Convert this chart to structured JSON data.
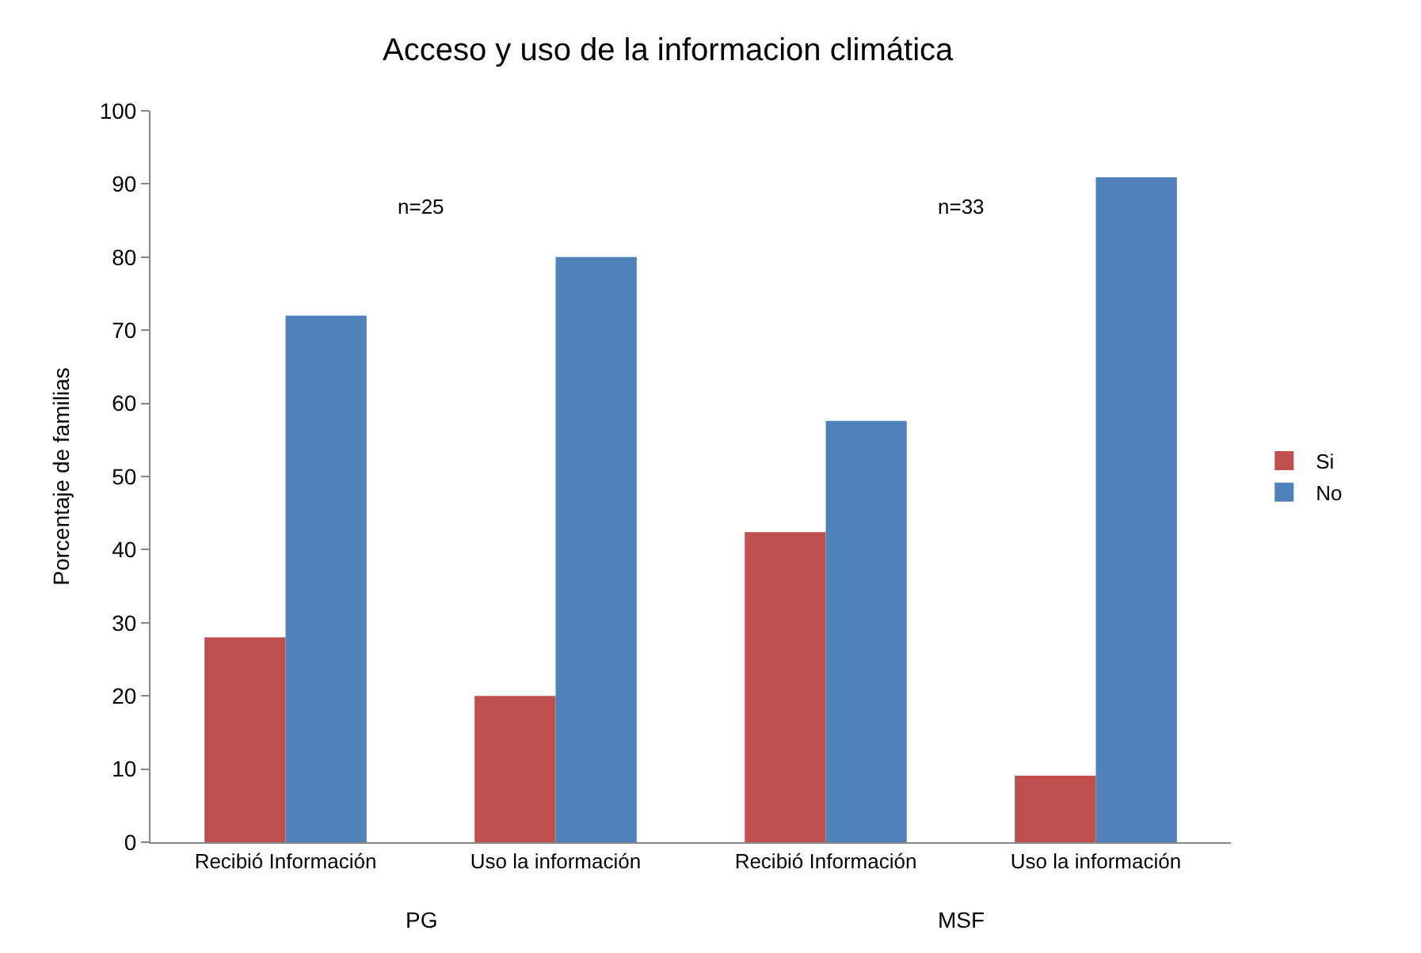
{
  "chart_data": {
    "type": "bar",
    "title": "Acceso y uso de la informacion climática",
    "ylabel": "Porcentaje de familias",
    "categories": [
      "Recibió Información",
      "Uso la información",
      "Recibió Información",
      "Uso la información"
    ],
    "series": [
      {
        "name": "Si",
        "color": "#c0504d",
        "values": [
          28,
          20,
          42.4,
          9.1
        ]
      },
      {
        "name": "No",
        "color": "#4f81bd",
        "values": [
          72,
          80,
          57.6,
          90.9
        ]
      }
    ],
    "ylim": [
      0,
      100
    ],
    "yticks": [
      0,
      10,
      20,
      30,
      40,
      50,
      60,
      70,
      80,
      90,
      100
    ],
    "grid": false,
    "legend": "right",
    "annotations": [
      "n=25",
      "n=33",
      "PG",
      "MSF"
    ]
  }
}
